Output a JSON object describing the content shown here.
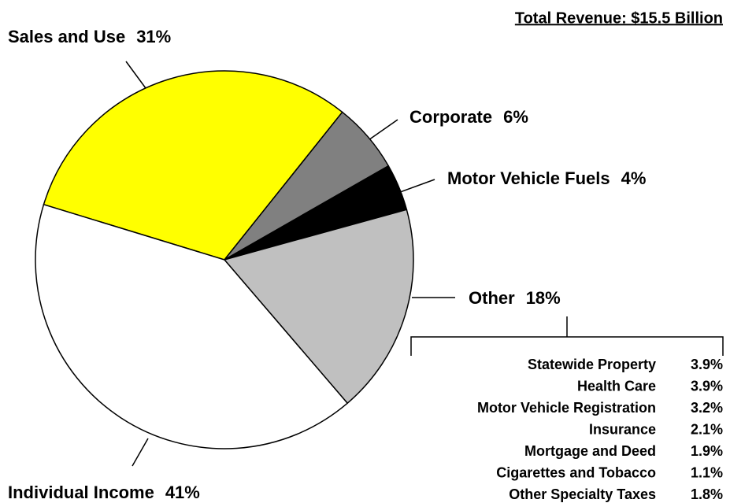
{
  "chart_data": {
    "type": "pie",
    "title": "Total Revenue:  $15.5 Billion",
    "categories": [
      "Sales and Use",
      "Corporate",
      "Motor Vehicle Fuels",
      "Other",
      "Individual Income"
    ],
    "values": [
      31,
      6,
      4,
      18,
      41
    ],
    "value_labels": [
      "31%",
      "6%",
      "4%",
      "18%",
      "41%"
    ],
    "colors": [
      "#ffff00",
      "#808080",
      "#000000",
      "#c0c0c0",
      "#ffffff"
    ],
    "breakdown": {
      "categories": [
        "Statewide Property",
        "Health Care",
        "Motor Vehicle Registration",
        "Insurance",
        "Mortgage and Deed",
        "Cigarettes and Tobacco",
        "Other Specialty Taxes"
      ],
      "values": [
        3.9,
        3.9,
        3.2,
        2.1,
        1.9,
        1.1,
        1.8
      ],
      "value_labels": [
        "3.9%",
        "3.9%",
        "3.2%",
        "2.1%",
        "1.9%",
        "1.1%",
        "1.8%"
      ]
    }
  }
}
